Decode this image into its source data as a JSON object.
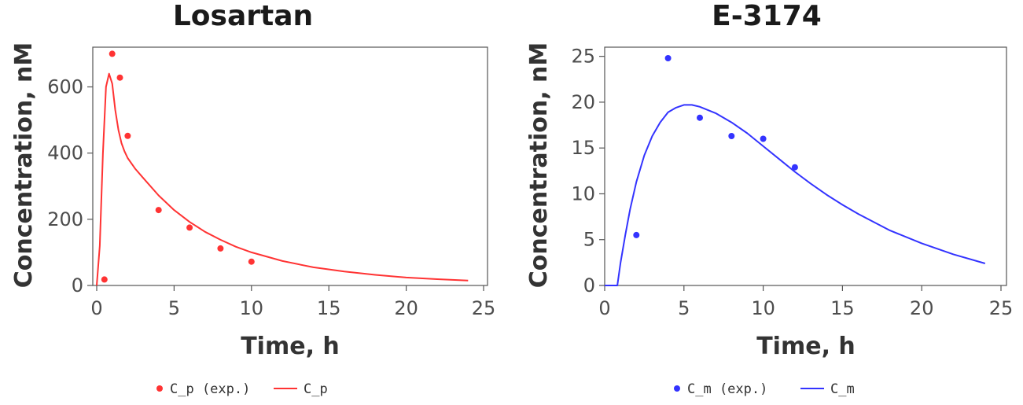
{
  "chart_data": [
    {
      "type": "line",
      "title": "Losartan",
      "xlabel": "Time, h",
      "ylabel": "Concentration, nM",
      "xlim": [
        0,
        25
      ],
      "ylim": [
        0,
        720
      ],
      "xticks": [
        0,
        5,
        10,
        15,
        20,
        25
      ],
      "yticks": [
        0,
        200,
        400,
        600
      ],
      "grid": false,
      "legend_position": "bottom",
      "color": "#ff3333",
      "series": [
        {
          "name": "C_p (exp.)",
          "kind": "scatter",
          "x": [
            0.5,
            1,
            1.5,
            2,
            4,
            6,
            8,
            10
          ],
          "y": [
            18,
            700,
            628,
            452,
            228,
            175,
            112,
            72
          ]
        },
        {
          "name": "C_p",
          "kind": "line",
          "x": [
            0,
            0.2,
            0.4,
            0.6,
            0.8,
            1.0,
            1.2,
            1.4,
            1.6,
            1.8,
            2,
            2.5,
            3,
            4,
            5,
            6,
            7,
            8,
            9,
            10,
            12,
            14,
            16,
            18,
            20,
            22,
            24
          ],
          "y": [
            0,
            120,
            400,
            600,
            640,
            610,
            530,
            470,
            430,
            405,
            385,
            352,
            325,
            272,
            228,
            192,
            162,
            138,
            117,
            100,
            74,
            55,
            42,
            32,
            24,
            19,
            15
          ]
        }
      ]
    },
    {
      "type": "line",
      "title": "E-3174",
      "xlabel": "Time, h",
      "ylabel": "Concentration, nM",
      "xlim": [
        0,
        25
      ],
      "ylim": [
        0,
        26
      ],
      "xticks": [
        0,
        5,
        10,
        15,
        20,
        25
      ],
      "yticks": [
        0,
        5,
        10,
        15,
        20,
        25
      ],
      "grid": false,
      "legend_position": "bottom",
      "color": "#3333ff",
      "series": [
        {
          "name": "C_m (exp.)",
          "kind": "scatter",
          "x": [
            2,
            4,
            6,
            8,
            10,
            12
          ],
          "y": [
            5.5,
            24.8,
            18.3,
            16.3,
            16.0,
            12.9
          ]
        },
        {
          "name": "C_m",
          "kind": "line",
          "x": [
            0,
            0.8,
            1.0,
            1.3,
            1.6,
            2.0,
            2.5,
            3.0,
            3.5,
            4.0,
            4.5,
            5.0,
            5.5,
            6.0,
            7,
            8,
            9,
            10,
            11,
            12,
            13,
            14,
            15,
            16,
            18,
            20,
            22,
            24
          ],
          "y": [
            0,
            0,
            2.5,
            5.5,
            8.3,
            11.3,
            14.2,
            16.3,
            17.8,
            18.9,
            19.4,
            19.7,
            19.7,
            19.5,
            18.8,
            17.8,
            16.6,
            15.2,
            13.8,
            12.4,
            11.1,
            9.9,
            8.8,
            7.8,
            6.0,
            4.6,
            3.4,
            2.4
          ]
        }
      ]
    }
  ]
}
